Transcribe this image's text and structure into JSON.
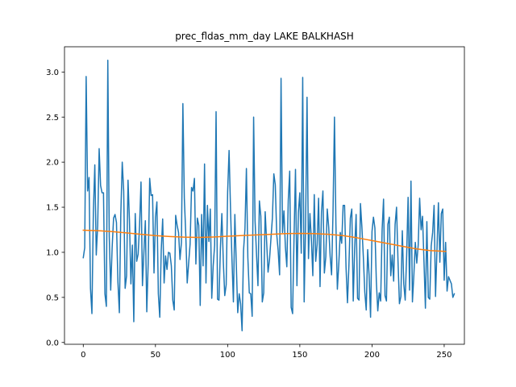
{
  "chart_data": {
    "type": "line",
    "title": "prec_fldas_mm_day LAKE BALKHASH",
    "xlabel": "",
    "ylabel": "",
    "xlim": [
      -13,
      264
    ],
    "ylim": [
      -0.02,
      3.28
    ],
    "xticks": [
      0,
      50,
      100,
      150,
      200,
      250
    ],
    "yticks": [
      0.0,
      0.5,
      1.0,
      1.5,
      2.0,
      2.5,
      3.0
    ],
    "ytick_labels": [
      "0.0",
      "0.5",
      "1.0",
      "1.5",
      "2.0",
      "2.5",
      "3.0"
    ],
    "grid": false,
    "legend": "none",
    "series": [
      {
        "color": "#1f77b4",
        "values": [
          0.94,
          1.05,
          2.95,
          1.68,
          1.83,
          0.6,
          0.32,
          1.45,
          1.97,
          0.97,
          1.3,
          2.15,
          1.74,
          1.66,
          1.66,
          0.54,
          0.4,
          3.13,
          1.18,
          0.58,
          1.05,
          1.38,
          1.42,
          1.33,
          0.67,
          0.33,
          1.42,
          2.0,
          1.68,
          0.6,
          0.74,
          1.8,
          1.35,
          0.65,
          1.08,
          0.23,
          1.43,
          0.9,
          0.98,
          1.3,
          1.78,
          0.63,
          1.0,
          1.35,
          0.34,
          0.9,
          1.82,
          1.63,
          1.64,
          0.77,
          1.39,
          1.56,
          0.54,
          0.28,
          1.02,
          1.37,
          0.66,
          0.96,
          0.81,
          1.0,
          0.99,
          0.85,
          0.47,
          0.36,
          1.41,
          1.3,
          1.22,
          0.92,
          1.11,
          2.65,
          1.6,
          1.2,
          0.66,
          0.88,
          1.09,
          1.72,
          1.68,
          1.82,
          0.87,
          1.38,
          1.3,
          0.41,
          1.42,
          0.85,
          1.98,
          0.66,
          1.52,
          1.12,
          1.48,
          0.49,
          0.85,
          1.08,
          2.56,
          0.48,
          0.47,
          1.05,
          1.43,
          0.9,
          0.52,
          0.64,
          1.67,
          2.13,
          1.48,
          0.92,
          0.45,
          1.42,
          0.87,
          0.33,
          0.54,
          0.43,
          0.13,
          1.02,
          1.26,
          1.93,
          0.94,
          0.55,
          0.54,
          0.29,
          2.5,
          1.35,
          0.98,
          0.63,
          1.57,
          1.4,
          0.45,
          0.55,
          1.45,
          1.12,
          0.78,
          0.92,
          1.15,
          1.38,
          1.87,
          1.75,
          1.2,
          1.02,
          0.75,
          2.93,
          1.22,
          1.46,
          1.06,
          0.84,
          1.58,
          1.9,
          0.39,
          0.32,
          1.17,
          1.92,
          0.63,
          1.44,
          1.66,
          0.99,
          2.94,
          0.45,
          1.31,
          2.72,
          0.93,
          1.43,
          1.15,
          0.74,
          1.64,
          0.9,
          1.09,
          1.6,
          0.62,
          1.45,
          1.68,
          0.77,
          0.95,
          1.48,
          1.28,
          0.96,
          0.75,
          1.45,
          2.5,
          1.31,
          0.59,
          0.87,
          1.22,
          1.1,
          1.52,
          1.52,
          0.84,
          0.44,
          0.85,
          1.38,
          1.48,
          0.46,
          1.05,
          1.42,
          0.49,
          0.47,
          1.54,
          1.28,
          0.95,
          0.56,
          0.36,
          1.03,
          0.74,
          0.28,
          1.23,
          1.39,
          1.27,
          0.68,
          0.35,
          0.55,
          0.46,
          1.25,
          1.59,
          0.52,
          0.46,
          1.31,
          1.39,
          0.74,
          0.97,
          0.68,
          1.31,
          1.5,
          0.91,
          0.43,
          0.51,
          1.24,
          0.65,
          0.47,
          0.97,
          1.61,
          0.58,
          1.79,
          0.45,
          0.75,
          1.11,
          0.88,
          1.08,
          1.6,
          1.25,
          1.4,
          0.9,
          0.38,
          1.34,
          0.5,
          0.48,
          1.07,
          1.22,
          1.52,
          0.51,
          1.03,
          1.55,
          0.89,
          1.43,
          1.48,
          0.69,
          1.11,
          0.57,
          0.73,
          0.69,
          0.65,
          0.5,
          0.54
        ]
      },
      {
        "color": "#ff7f0e",
        "x": [
          0,
          10,
          20,
          30,
          40,
          50,
          60,
          70,
          80,
          90,
          100,
          110,
          120,
          130,
          140,
          150,
          160,
          170,
          180,
          190,
          200,
          210,
          220,
          230,
          240,
          251
        ],
        "values": [
          1.245,
          1.24,
          1.23,
          1.215,
          1.2,
          1.185,
          1.175,
          1.168,
          1.165,
          1.17,
          1.178,
          1.186,
          1.193,
          1.2,
          1.207,
          1.21,
          1.208,
          1.2,
          1.185,
          1.16,
          1.13,
          1.1,
          1.07,
          1.04,
          1.02,
          1.01
        ]
      }
    ]
  }
}
